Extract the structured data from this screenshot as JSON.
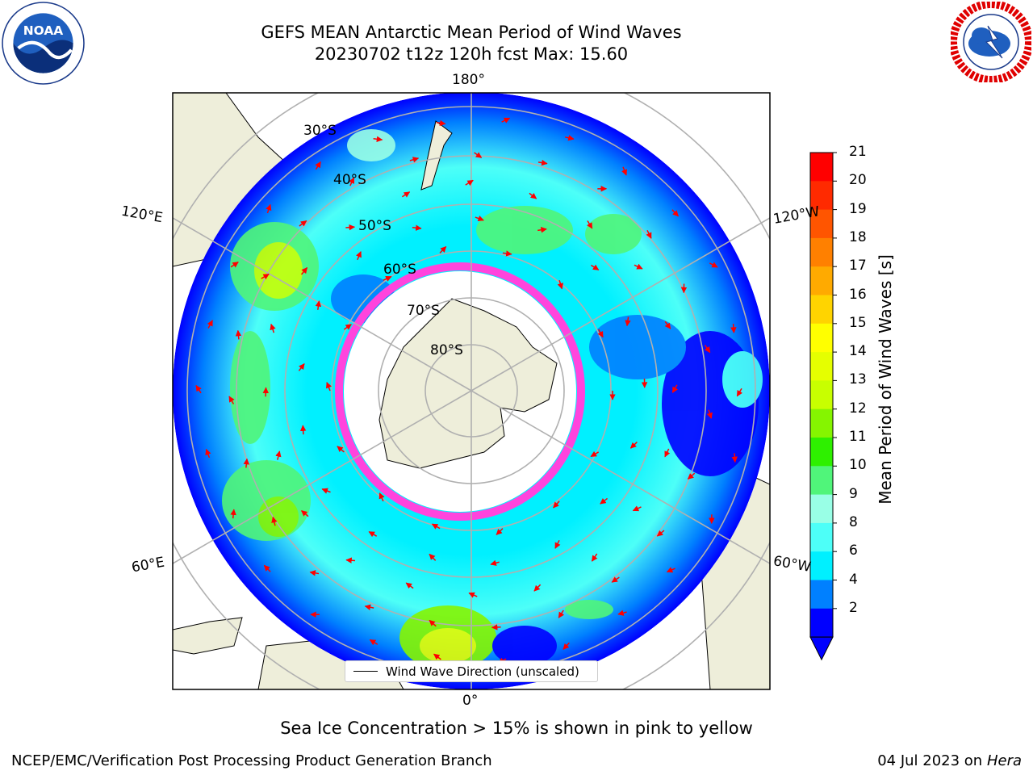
{
  "title_line1": "GEFS MEAN Antarctic Mean Period of Wind Waves",
  "title_line2": "20230702 t12z 120h fcst   Max: 15.60",
  "graticule": {
    "lon_180": "180°",
    "lon_0": "0°",
    "lon_120E": "120°E",
    "lon_60E": "60°E",
    "lon_120W": "120°W",
    "lon_60W": "60°W",
    "lat_30S": "30°S",
    "lat_40S": "40°S",
    "lat_50S": "50°S",
    "lat_60S": "60°S",
    "lat_70S": "70°S",
    "lat_80S": "80°S"
  },
  "colorbar": {
    "label": "Mean Period of Wind Waves [s]",
    "ticks": [
      "21",
      "20",
      "19",
      "18",
      "17",
      "16",
      "15",
      "14",
      "13",
      "12",
      "11",
      "10",
      "9",
      "8",
      "6",
      "4",
      "2"
    ],
    "colors": [
      "#ff0000",
      "#ff2a00",
      "#ff5500",
      "#ff8000",
      "#ffaa00",
      "#ffd400",
      "#ffff00",
      "#e5ff00",
      "#c8ff00",
      "#85f500",
      "#2ef000",
      "#50f57a",
      "#99ffe6",
      "#4dfff8",
      "#00f0ff",
      "#0080ff",
      "#0000ff"
    ]
  },
  "legend": {
    "text": "Wind Wave Direction (unscaled)"
  },
  "footnote": "Sea Ice Concentration > 15% is shown in pink to yellow",
  "credit": "NCEP/EMC/Verification Post Processing Product Generation Branch",
  "date_prefix": "04 Jul 2023 on ",
  "date_host": "Hera",
  "logos": {
    "left": "noaa-logo",
    "right": "nws-logo"
  }
}
